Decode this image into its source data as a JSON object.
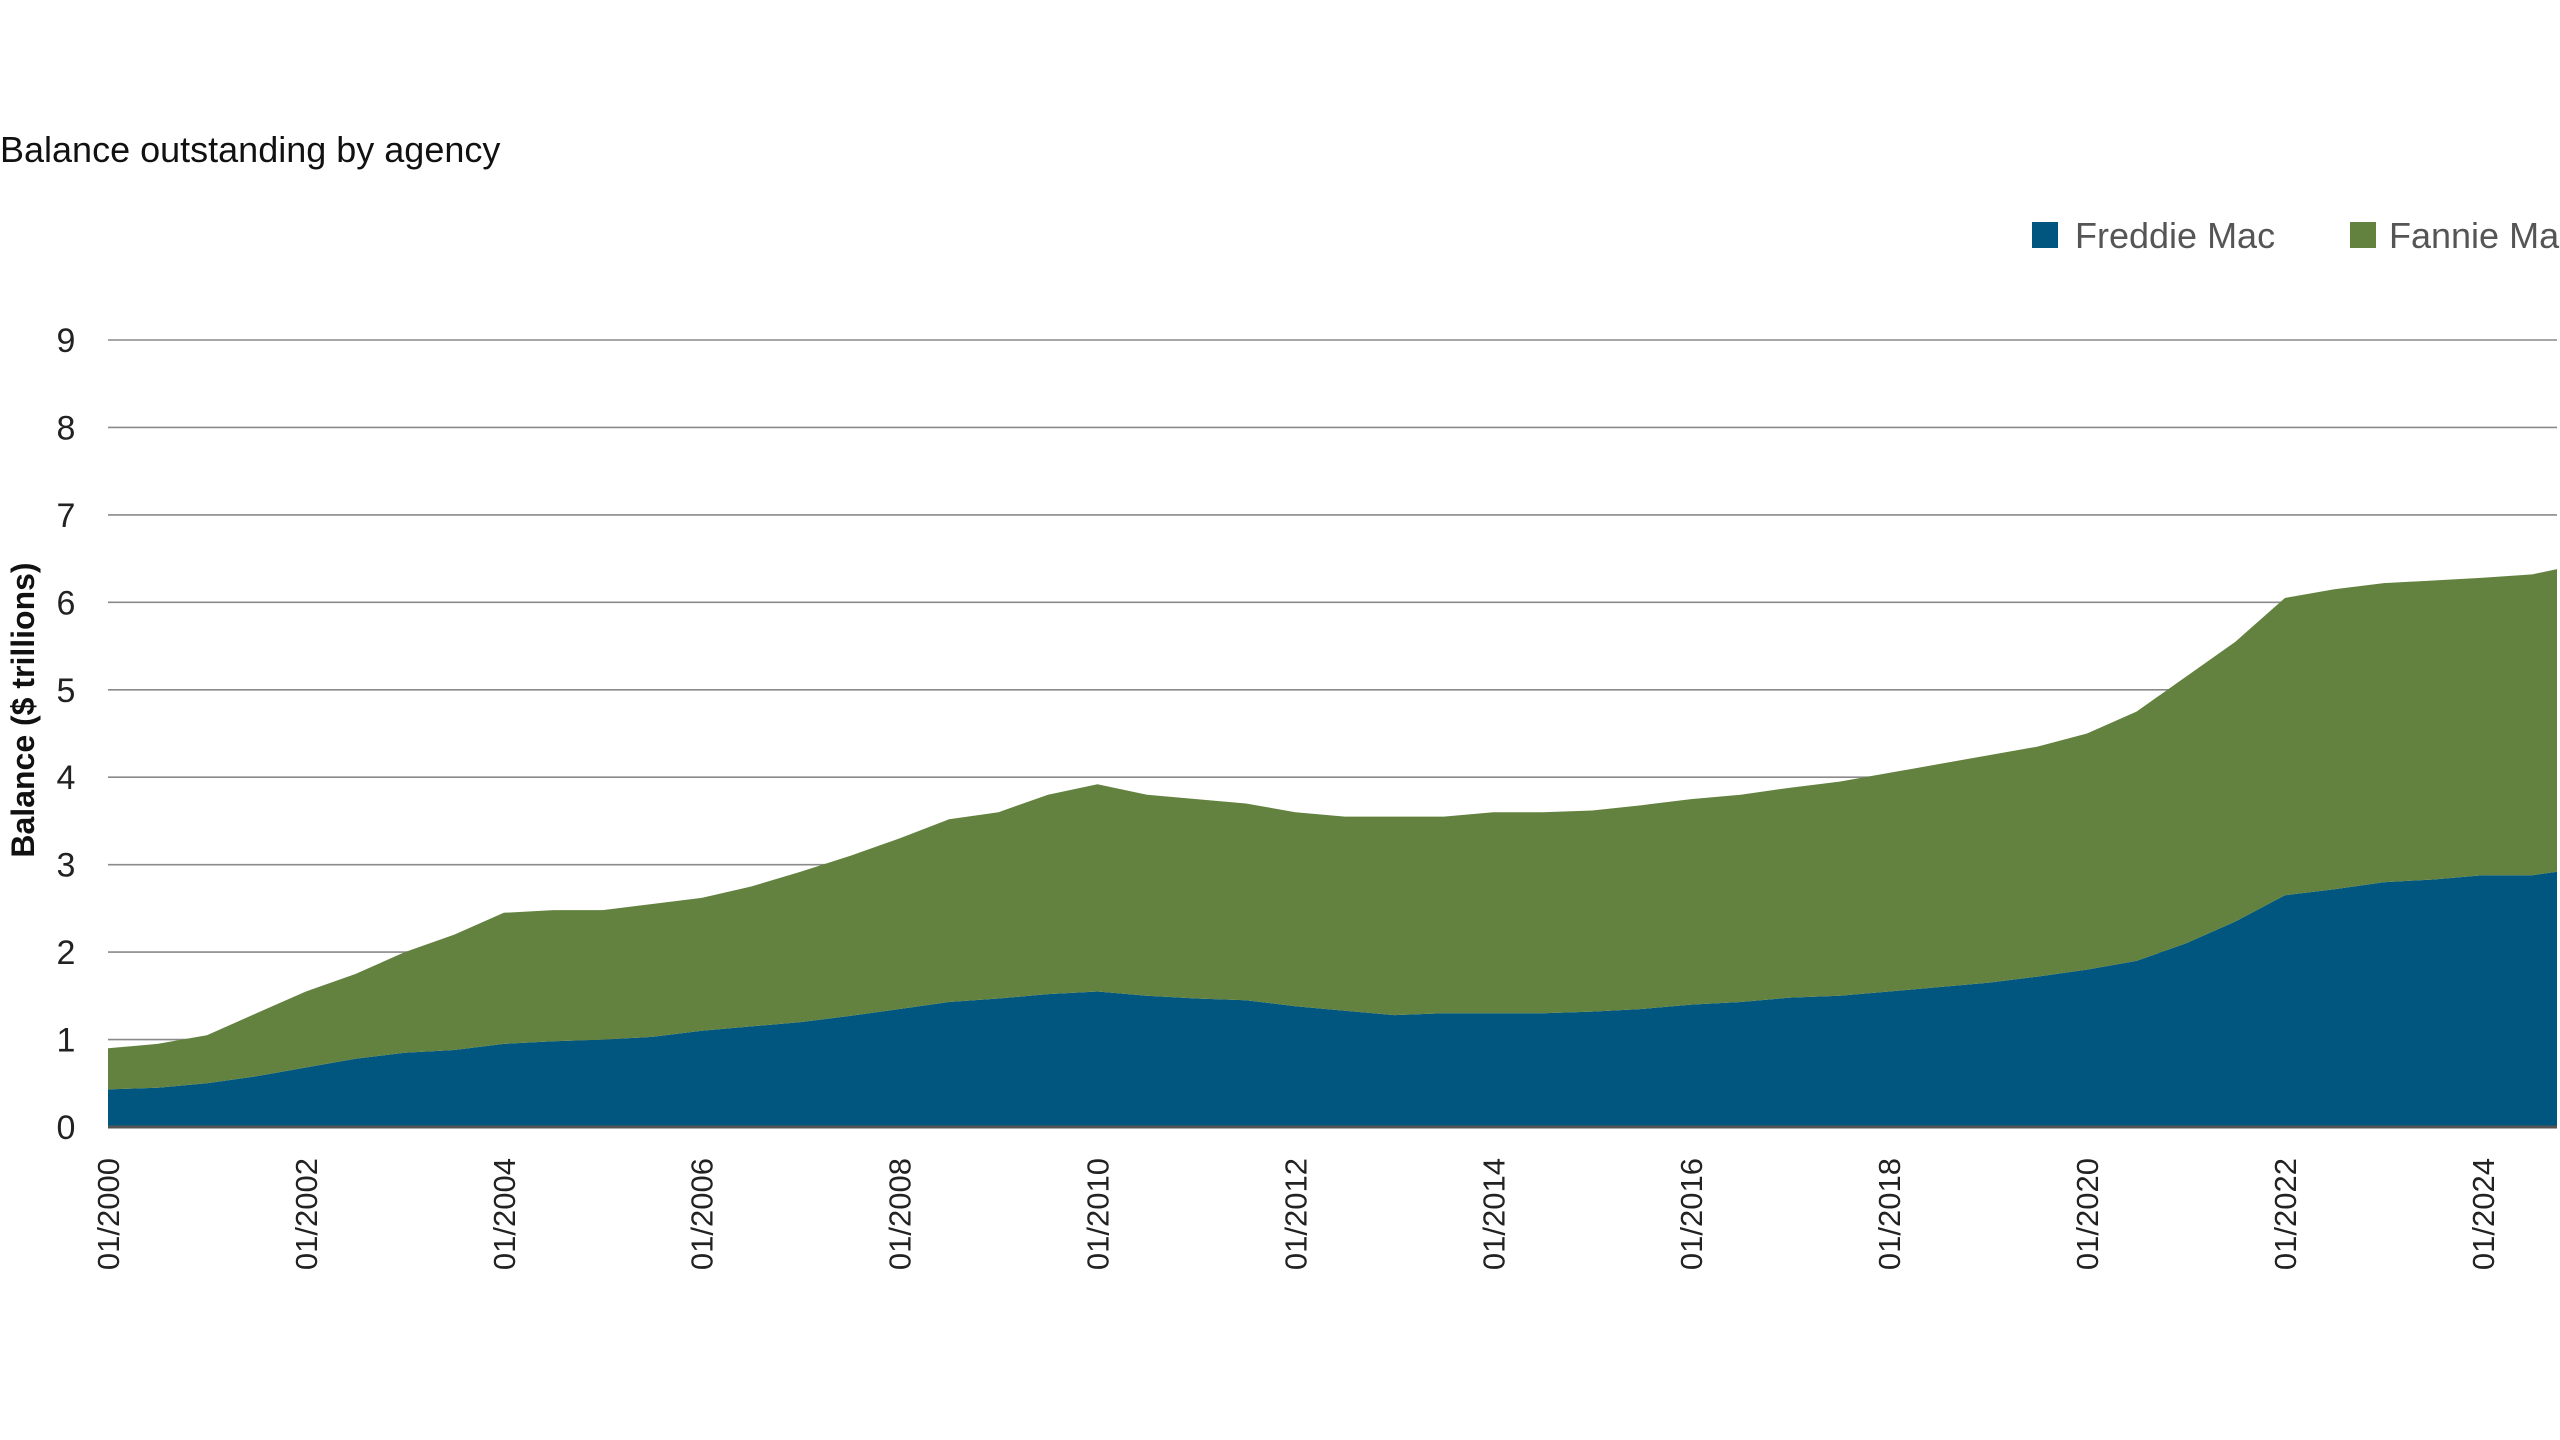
{
  "chart_data": {
    "type": "area",
    "stacked": true,
    "title": "Balance outstanding by agency",
    "xlabel": "",
    "ylabel": "Balance ($ trillions)",
    "ylim": [
      0,
      9
    ],
    "yticks": [
      "0",
      "1",
      "2",
      "3",
      "4",
      "5",
      "6",
      "7",
      "8",
      "9"
    ],
    "xticks": [
      "01/2000",
      "01/2002",
      "01/2004",
      "01/2006",
      "01/2008",
      "01/2010",
      "01/2012",
      "01/2014",
      "01/2016",
      "01/2018",
      "01/2020",
      "01/2022",
      "01/2024"
    ],
    "grid": "horizontal",
    "legend_position": "top-right",
    "x": [
      "01/2000",
      "07/2000",
      "01/2001",
      "07/2001",
      "01/2002",
      "07/2002",
      "01/2003",
      "07/2003",
      "01/2004",
      "07/2004",
      "01/2005",
      "07/2005",
      "01/2006",
      "07/2006",
      "01/2007",
      "07/2007",
      "01/2008",
      "07/2008",
      "01/2009",
      "07/2009",
      "01/2010",
      "07/2010",
      "01/2011",
      "07/2011",
      "01/2012",
      "07/2012",
      "01/2013",
      "07/2013",
      "01/2014",
      "07/2014",
      "01/2015",
      "07/2015",
      "01/2016",
      "07/2016",
      "01/2017",
      "07/2017",
      "01/2018",
      "07/2018",
      "01/2019",
      "07/2019",
      "01/2020",
      "07/2020",
      "01/2021",
      "07/2021",
      "01/2022",
      "07/2022",
      "01/2023",
      "07/2023",
      "01/2024",
      "07/2024",
      "10/2024"
    ],
    "series": [
      {
        "name": "Freddie Mac",
        "color": "#00567f",
        "values": [
          0.43,
          0.45,
          0.5,
          0.58,
          0.68,
          0.78,
          0.85,
          0.88,
          0.95,
          0.98,
          1.0,
          1.03,
          1.1,
          1.15,
          1.2,
          1.27,
          1.35,
          1.43,
          1.47,
          1.52,
          1.55,
          1.5,
          1.47,
          1.45,
          1.38,
          1.33,
          1.28,
          1.3,
          1.3,
          1.3,
          1.32,
          1.35,
          1.4,
          1.43,
          1.48,
          1.5,
          1.55,
          1.6,
          1.65,
          1.72,
          1.8,
          1.9,
          2.1,
          2.35,
          2.65,
          2.72,
          2.8,
          2.83,
          2.88,
          2.88,
          2.92
        ]
      },
      {
        "name": "Fannie Mae",
        "color": "#63823f",
        "values": [
          0.47,
          0.5,
          0.55,
          0.72,
          0.87,
          0.97,
          1.15,
          1.32,
          1.5,
          1.5,
          1.48,
          1.52,
          1.52,
          1.6,
          1.72,
          1.83,
          1.95,
          2.09,
          2.13,
          2.28,
          2.37,
          2.3,
          2.28,
          2.25,
          2.22,
          2.22,
          2.27,
          2.25,
          2.3,
          2.3,
          2.3,
          2.33,
          2.35,
          2.37,
          2.4,
          2.45,
          2.5,
          2.55,
          2.6,
          2.63,
          2.7,
          2.85,
          3.05,
          3.2,
          3.4,
          3.43,
          3.42,
          3.42,
          3.4,
          3.44,
          3.46
        ]
      }
    ]
  }
}
